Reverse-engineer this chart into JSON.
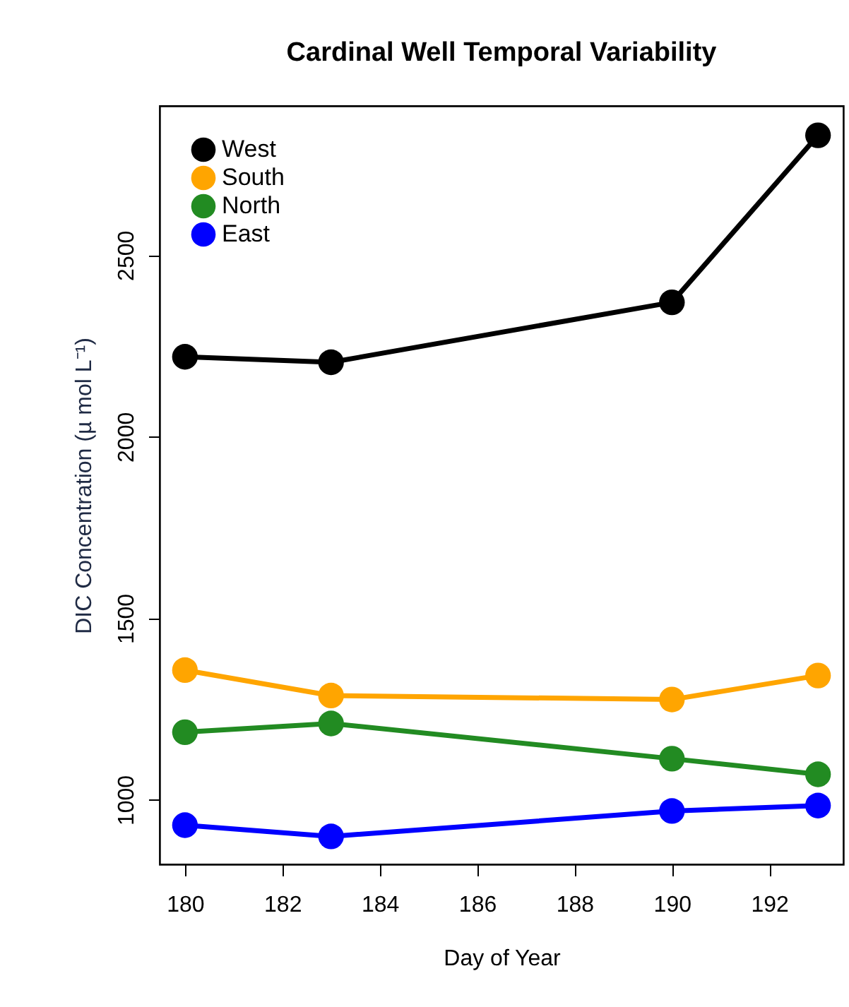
{
  "chart_data": {
    "type": "line",
    "title": "Cardinal Well Temporal Variability",
    "xlabel": "Day of Year",
    "ylabel": "DIC Concentration (µ mol L⁻¹)",
    "x": [
      180,
      183,
      190,
      193
    ],
    "series": [
      {
        "name": "West",
        "color": "#000000",
        "values": [
          2220,
          2205,
          2370,
          2830
        ]
      },
      {
        "name": "South",
        "color": "#ffa500",
        "values": [
          1357,
          1287,
          1276,
          1342
        ]
      },
      {
        "name": "North",
        "color": "#228b22",
        "values": [
          1186,
          1210,
          1113,
          1070
        ]
      },
      {
        "name": "East",
        "color": "#0000ff",
        "values": [
          930,
          899,
          969,
          984
        ]
      }
    ],
    "xlim": [
      179.48,
      193.52
    ],
    "ylim": [
      822,
      2911
    ],
    "xticks": [
      180,
      182,
      184,
      186,
      188,
      190,
      192
    ],
    "yticks": [
      1000,
      1500,
      2000,
      2500
    ],
    "grid": false,
    "legend": "top left",
    "marker": "circle",
    "line_style": "solid"
  }
}
